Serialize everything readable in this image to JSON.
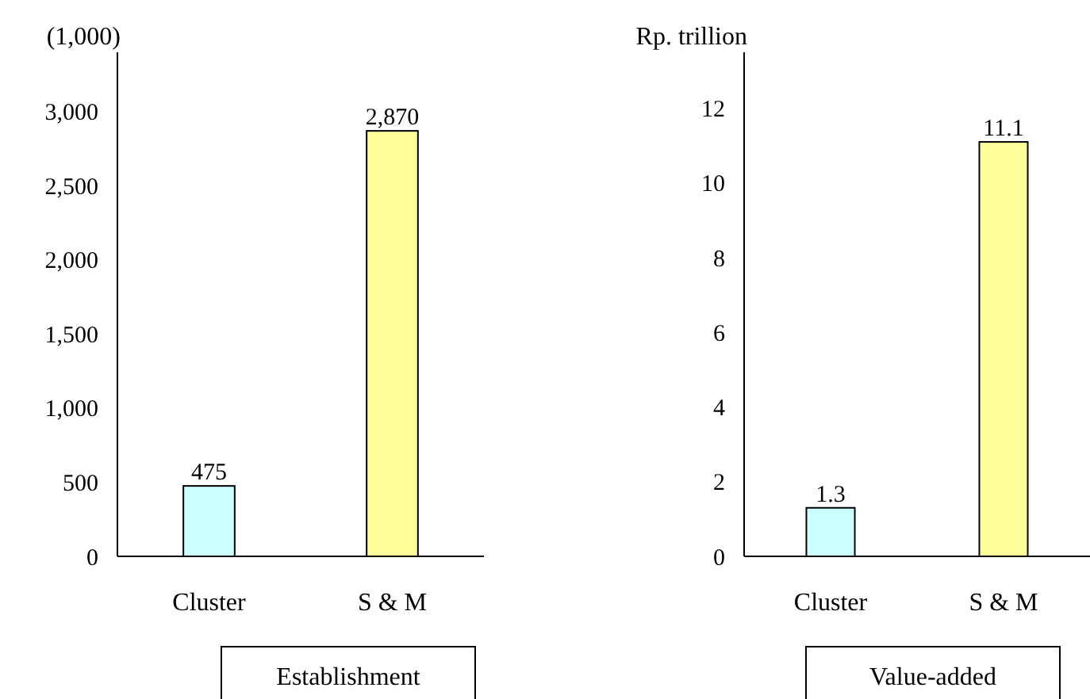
{
  "chart_data": [
    {
      "type": "bar",
      "ylabel": "(1,000)",
      "xlabel": "Establishment",
      "categories": [
        "Cluster",
        "S & M"
      ],
      "values": [
        475,
        2870
      ],
      "colors": [
        "#ccffff",
        "#ffff99"
      ],
      "ylim": [
        0,
        3400
      ],
      "yticks": [
        {
          "value": 0,
          "label": "0"
        },
        {
          "value": 500,
          "label": "500"
        },
        {
          "value": 1000,
          "label": "1,000"
        },
        {
          "value": 1500,
          "label": "1,500"
        },
        {
          "value": 2000,
          "label": "2,000"
        },
        {
          "value": 2500,
          "label": "2,500"
        },
        {
          "value": 3000,
          "label": "3,000"
        }
      ],
      "value_labels": [
        "475",
        "2,870"
      ],
      "grid": false
    },
    {
      "type": "bar",
      "ylabel": "Rp. trillion",
      "xlabel": "Value-added",
      "categories": [
        "Cluster",
        "S & M"
      ],
      "values": [
        1.3,
        11.1
      ],
      "colors": [
        "#ccffff",
        "#ffff99"
      ],
      "ylim": [
        0,
        13.5
      ],
      "yticks": [
        0,
        2,
        4,
        6,
        8,
        10,
        12
      ],
      "data_labels": true,
      "grid": false
    }
  ]
}
